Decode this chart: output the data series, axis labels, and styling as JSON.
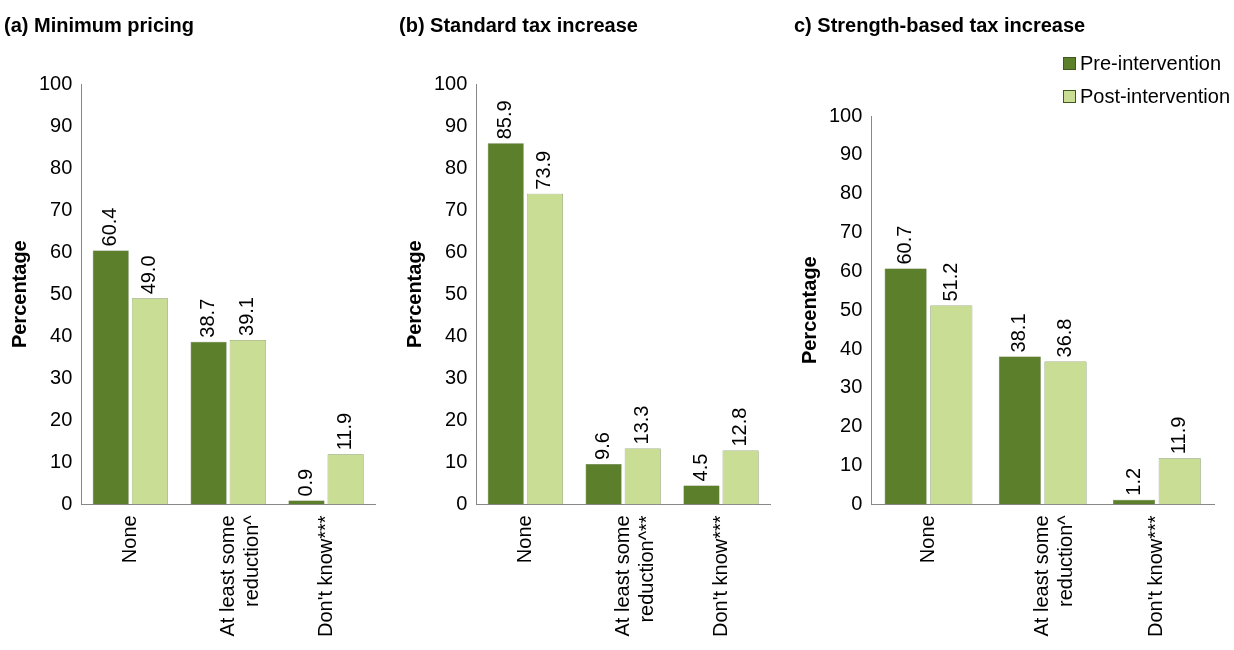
{
  "chart_data": [
    {
      "type": "bar",
      "title": "(a) Minimum pricing",
      "ylabel": "Percentage",
      "categories": [
        "None",
        "At least some reduction^",
        "Don't know***"
      ],
      "series": [
        {
          "color": "#5b7f2b",
          "values": [
            60.4,
            38.7,
            0.9
          ],
          "value_labels": [
            "60.4",
            "38.7",
            "0.9"
          ]
        },
        {
          "color": "#c9de94",
          "values": [
            49.0,
            39.1,
            11.9
          ],
          "value_labels": [
            "49.0",
            "39.1",
            "11.9"
          ]
        }
      ],
      "ylim": [
        0,
        100
      ],
      "yticks": [
        0,
        10,
        20,
        30,
        40,
        50,
        60,
        70,
        80,
        90,
        100
      ],
      "legend": false
    },
    {
      "type": "bar",
      "title": "(b) Standard tax increase",
      "ylabel": "Percentage",
      "categories": [
        "None",
        "At least some reduction^**",
        "Don't know***"
      ],
      "series": [
        {
          "color": "#5b7f2b",
          "values": [
            85.9,
            9.6,
            4.5
          ],
          "value_labels": [
            "85.9",
            "9.6",
            "4.5"
          ]
        },
        {
          "color": "#c9de94",
          "values": [
            73.9,
            13.3,
            12.8
          ],
          "value_labels": [
            "73.9",
            "13.3",
            "12.8"
          ]
        }
      ],
      "ylim": [
        0,
        100
      ],
      "yticks": [
        0,
        10,
        20,
        30,
        40,
        50,
        60,
        70,
        80,
        90,
        100
      ],
      "legend": false
    },
    {
      "type": "bar",
      "title": "c) Strength-based tax increase",
      "ylabel": "Percentage",
      "categories": [
        "None",
        "At least some reduction^",
        "Don't know***"
      ],
      "series": [
        {
          "name": "Pre-intervention",
          "color": "#5b7f2b",
          "values": [
            60.7,
            38.1,
            1.2
          ],
          "value_labels": [
            "60.7",
            "38.1",
            "1.2"
          ]
        },
        {
          "name": "Post-intervention",
          "color": "#c9de94",
          "values": [
            51.2,
            36.8,
            11.9
          ],
          "value_labels": [
            "51.2",
            "36.8",
            "11.9"
          ]
        }
      ],
      "ylim": [
        0,
        100
      ],
      "yticks": [
        0,
        10,
        20,
        30,
        40,
        50,
        60,
        70,
        80,
        90,
        100
      ],
      "legend": "top right"
    }
  ]
}
